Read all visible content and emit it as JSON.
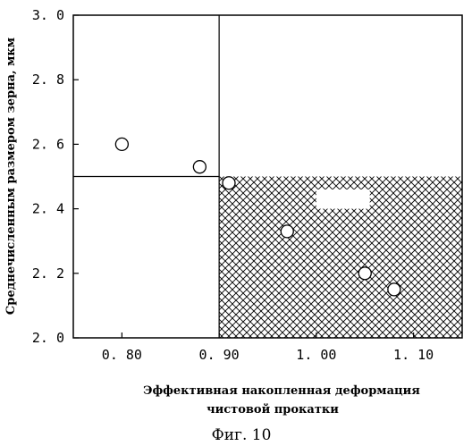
{
  "chart_data": {
    "type": "scatter",
    "title": "",
    "xlabel_lines": [
      "Эффективная накопленная деформация",
      "чистовой прокатки"
    ],
    "ylabel": "Среднечисленным размером зерна, мкм",
    "xlim": [
      0.75,
      1.15
    ],
    "ylim": [
      2.0,
      3.0
    ],
    "x_ticks": [
      0.8,
      0.9,
      1.0,
      1.1
    ],
    "x_tick_labels": [
      "0. 80",
      "0. 90",
      "1. 00",
      "1. 10"
    ],
    "y_ticks": [
      2.0,
      2.2,
      2.4,
      2.6,
      2.8,
      3.0
    ],
    "y_tick_labels": [
      "2. 0",
      "2. 2",
      "2. 4",
      "2. 6",
      "2. 8",
      "3. 0"
    ],
    "points": [
      {
        "x": 0.8,
        "y": 2.6
      },
      {
        "x": 0.88,
        "y": 2.53
      },
      {
        "x": 0.91,
        "y": 2.48
      },
      {
        "x": 0.97,
        "y": 2.33
      },
      {
        "x": 1.05,
        "y": 2.2
      },
      {
        "x": 1.08,
        "y": 2.15
      }
    ],
    "threshold_x": 0.9,
    "threshold_y": 2.5,
    "hatched_region": {
      "x": [
        0.9,
        1.15
      ],
      "y": [
        2.0,
        2.5
      ]
    },
    "blank_box_in_region": {
      "x": [
        1.0,
        1.055
      ],
      "y": [
        2.4,
        2.46
      ]
    },
    "grid": false,
    "marker": "open-circle",
    "colors": {
      "line": "#000000",
      "hatch": "#000000",
      "marker_fill": "#ffffff"
    }
  },
  "caption": "Фиг. 10"
}
